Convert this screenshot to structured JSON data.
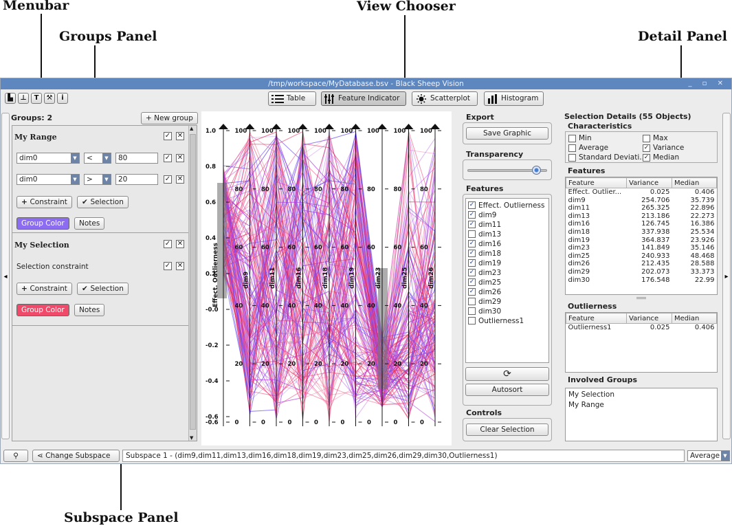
{
  "annotations": {
    "menubar": "Menubar",
    "view_chooser": "View Chooser",
    "groups_panel": "Groups Panel",
    "detail_panel": "Detail Panel",
    "subspace_panel": "Subspace Panel"
  },
  "window": {
    "title": "/tmp/workspace/MyDatabase.bsv - Black Sheep Vision",
    "controls": "_ ▫ ✕"
  },
  "toolbar": {
    "buttons": [
      {
        "icon": "new-file-icon",
        "glyph": "▙"
      },
      {
        "icon": "import-icon",
        "glyph": "⊥"
      },
      {
        "icon": "text-icon",
        "glyph": "T"
      },
      {
        "icon": "wrench-icon",
        "glyph": "⚒"
      },
      {
        "icon": "info-icon",
        "glyph": "i"
      }
    ]
  },
  "views": {
    "active": "Feature Indicator",
    "items": [
      {
        "label": "Table",
        "icon": "table-icon"
      },
      {
        "label": "Feature Indicator",
        "icon": "feature-indicator-icon"
      },
      {
        "label": "Scatterplot",
        "icon": "scatterplot-icon"
      },
      {
        "label": "Histogram",
        "icon": "histogram-icon"
      }
    ]
  },
  "groups": {
    "title": "Groups: 2",
    "new_group": "+ New group",
    "list": [
      {
        "name": "My Range",
        "constraints": [
          {
            "field": "dim0",
            "op": "<",
            "value": "80"
          },
          {
            "field": "dim0",
            "op": ">",
            "value": "20"
          }
        ],
        "constraint_btn": "Constraint",
        "selection_btn": "Selection",
        "color_btn": "Group Color",
        "color": "#8c6cf0",
        "notes_btn": "Notes"
      },
      {
        "name": "My Selection",
        "constraint_label": "Selection constraint",
        "constraint_btn": "Constraint",
        "selection_btn": "Selection",
        "color_btn": "Group Color",
        "color": "#f04a6a",
        "notes_btn": "Notes"
      }
    ]
  },
  "chart_data": {
    "type": "line",
    "first_axis": {
      "name": "Effect. Outlierness",
      "ticks": [
        "1.0",
        "0.8",
        "0.6",
        "0.4",
        "0.2",
        "-0.0",
        "-0.2",
        "-0.4",
        "-0.6",
        "-0.6"
      ]
    },
    "axes": [
      "dim9",
      "dim11",
      "dim16",
      "dim18",
      "dim19",
      "dim23",
      "dim25",
      "dim26"
    ],
    "axis_ticks": [
      "100",
      "80",
      "60",
      "40",
      "20",
      "0"
    ],
    "series_colors": [
      "#e8285a",
      "#b03ce0",
      "#6a4cf0",
      "#f06a9a"
    ]
  },
  "controls": {
    "export_title": "Export",
    "save_graphic": "Save Graphic",
    "transparency_title": "Transparency",
    "transparency_value": 0.86,
    "features_title": "Features",
    "features": [
      {
        "label": "Effect. Outlierness",
        "checked": true
      },
      {
        "label": "dim9",
        "checked": true
      },
      {
        "label": "dim11",
        "checked": true
      },
      {
        "label": "dim13",
        "checked": false
      },
      {
        "label": "dim16",
        "checked": true
      },
      {
        "label": "dim18",
        "checked": true
      },
      {
        "label": "dim19",
        "checked": true
      },
      {
        "label": "dim23",
        "checked": true
      },
      {
        "label": "dim25",
        "checked": true
      },
      {
        "label": "dim26",
        "checked": true
      },
      {
        "label": "dim29",
        "checked": false
      },
      {
        "label": "dim30",
        "checked": false
      },
      {
        "label": "Outlierness1",
        "checked": false
      }
    ],
    "autosort": "Autosort",
    "controls_title": "Controls",
    "clear_selection": "Clear Selection"
  },
  "detail": {
    "title": "Selection Details (55 Objects)",
    "characteristics_title": "Characteristics",
    "characteristics": [
      {
        "label": "Min",
        "checked": false
      },
      {
        "label": "Max",
        "checked": false
      },
      {
        "label": "Average",
        "checked": false
      },
      {
        "label": "Variance",
        "checked": true
      },
      {
        "label": "Standard Deviati...",
        "checked": false
      },
      {
        "label": "Median",
        "checked": true
      }
    ],
    "features_title": "Features",
    "columns": [
      "Feature",
      "Variance",
      "Median"
    ],
    "features": [
      [
        "Effect. Outlier...",
        "0.025",
        "0.406"
      ],
      [
        "dim9",
        "254.706",
        "35.739"
      ],
      [
        "dim11",
        "265.325",
        "22.896"
      ],
      [
        "dim13",
        "213.186",
        "22.273"
      ],
      [
        "dim16",
        "126.745",
        "16.386"
      ],
      [
        "dim18",
        "337.938",
        "25.534"
      ],
      [
        "dim19",
        "364.837",
        "23.926"
      ],
      [
        "dim23",
        "141.849",
        "35.146"
      ],
      [
        "dim25",
        "240.933",
        "48.468"
      ],
      [
        "dim26",
        "212.435",
        "28.588"
      ],
      [
        "dim29",
        "202.073",
        "33.373"
      ],
      [
        "dim30",
        "176.548",
        "22.99"
      ]
    ],
    "outlierness_title": "Outlierness",
    "outlierness": [
      [
        "Outlierness1",
        "0.025",
        "0.406"
      ]
    ],
    "involved_title": "Involved Groups",
    "involved": [
      "My Selection",
      "My Range"
    ]
  },
  "subspace": {
    "change_btn": "Change Subspace",
    "text": "Subspace 1 - (dim9,dim11,dim13,dim16,dim18,dim19,dim23,dim25,dim26,dim29,dim30,Outlierness1)",
    "aggregate": "Average"
  }
}
